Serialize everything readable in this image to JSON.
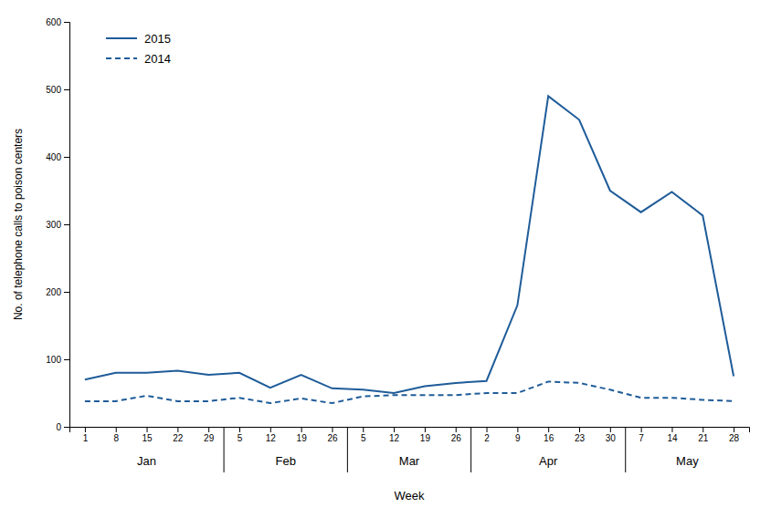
{
  "chart_data": {
    "type": "line",
    "xlabel": "Week",
    "ylabel": "No. of telephone calls to poison centers",
    "categories": [
      "1",
      "8",
      "15",
      "22",
      "29",
      "5",
      "12",
      "19",
      "26",
      "5",
      "12",
      "19",
      "26",
      "2",
      "9",
      "16",
      "23",
      "30",
      "7",
      "14",
      "21",
      "28"
    ],
    "category_groups": [
      "Jan",
      "Jan",
      "Jan",
      "Jan",
      "Jan",
      "Feb",
      "Feb",
      "Feb",
      "Feb",
      "Mar",
      "Mar",
      "Mar",
      "Mar",
      "Apr",
      "Apr",
      "Apr",
      "Apr",
      "Apr",
      "May",
      "May",
      "May",
      "May"
    ],
    "series": [
      {
        "name": "2015",
        "color": "#1F5C99",
        "line_style": "solid",
        "values": [
          70,
          80,
          80,
          83,
          77,
          80,
          58,
          77,
          57,
          55,
          50,
          60,
          65,
          68,
          180,
          490,
          455,
          350,
          318,
          348,
          313,
          75
        ]
      },
      {
        "name": "2014",
        "color": "#1F5C99",
        "line_style": "dashed",
        "values": [
          38,
          38,
          46,
          38,
          38,
          43,
          35,
          42,
          35,
          45,
          47,
          47,
          47,
          50,
          50,
          67,
          65,
          55,
          43,
          43,
          40,
          38
        ]
      }
    ],
    "ylim": [
      0,
      600
    ],
    "yticks": [
      0,
      100,
      200,
      300,
      400,
      500,
      600
    ],
    "grid": false,
    "legend": "top-left"
  }
}
